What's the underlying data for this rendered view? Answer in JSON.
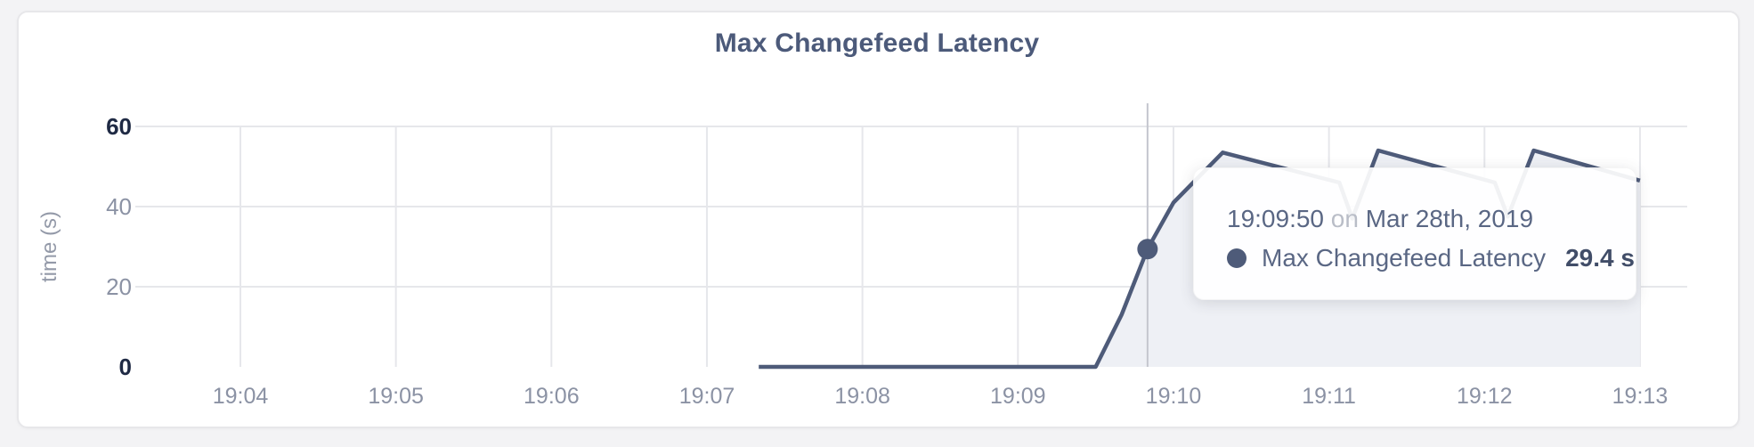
{
  "page": {
    "background": "#f3f3f5"
  },
  "card": {
    "background": "#ffffff",
    "border_color": "#e7e7ea"
  },
  "header": {
    "title": "Max Changefeed Latency",
    "title_color": "#4c5a7a"
  },
  "tooltip": {
    "time": "19:09:50",
    "conjunction": "on",
    "date": "Mar 28th, 2019",
    "series_label": "Max Changefeed Latency",
    "value": "29.4 s"
  },
  "chart_data": {
    "type": "area",
    "title": "Max Changefeed Latency",
    "xlabel": "",
    "ylabel": "time (s)",
    "ylim": [
      0,
      60
    ],
    "y_ticks": [
      0,
      20,
      40,
      60
    ],
    "x_ticks": [
      "19:04",
      "19:05",
      "19:06",
      "19:07",
      "19:08",
      "19:09",
      "19:10",
      "19:11",
      "19:12",
      "19:13"
    ],
    "grid": true,
    "legend_position": "none",
    "series": [
      {
        "name": "Max Changefeed Latency",
        "unit": "s",
        "points": [
          [
            "19:07:20",
            0
          ],
          [
            "19:09:30",
            0
          ],
          [
            "19:09:40",
            13
          ],
          [
            "19:09:50",
            29.4
          ],
          [
            "19:10:00",
            41
          ],
          [
            "19:10:19",
            53.5
          ],
          [
            "19:11:04",
            46
          ],
          [
            "19:11:09",
            37
          ],
          [
            "19:11:19",
            54
          ],
          [
            "19:12:04",
            46
          ],
          [
            "19:12:09",
            37.5
          ],
          [
            "19:12:19",
            54
          ],
          [
            "19:13:00",
            46.5
          ]
        ]
      }
    ],
    "highlight": {
      "time": "19:09:50",
      "value": 29.4,
      "date": "Mar 28th, 2019"
    },
    "colors": {
      "line": "#4e5b79",
      "fill": "#eef0f5",
      "grid": "#e6e7eb",
      "crosshair": "#c4c6ce",
      "dot": "#4e5b79",
      "axis_label_major": "#1f2a44",
      "axis_label_minor": "#8b92a4",
      "axis_title": "#9399a8"
    }
  }
}
